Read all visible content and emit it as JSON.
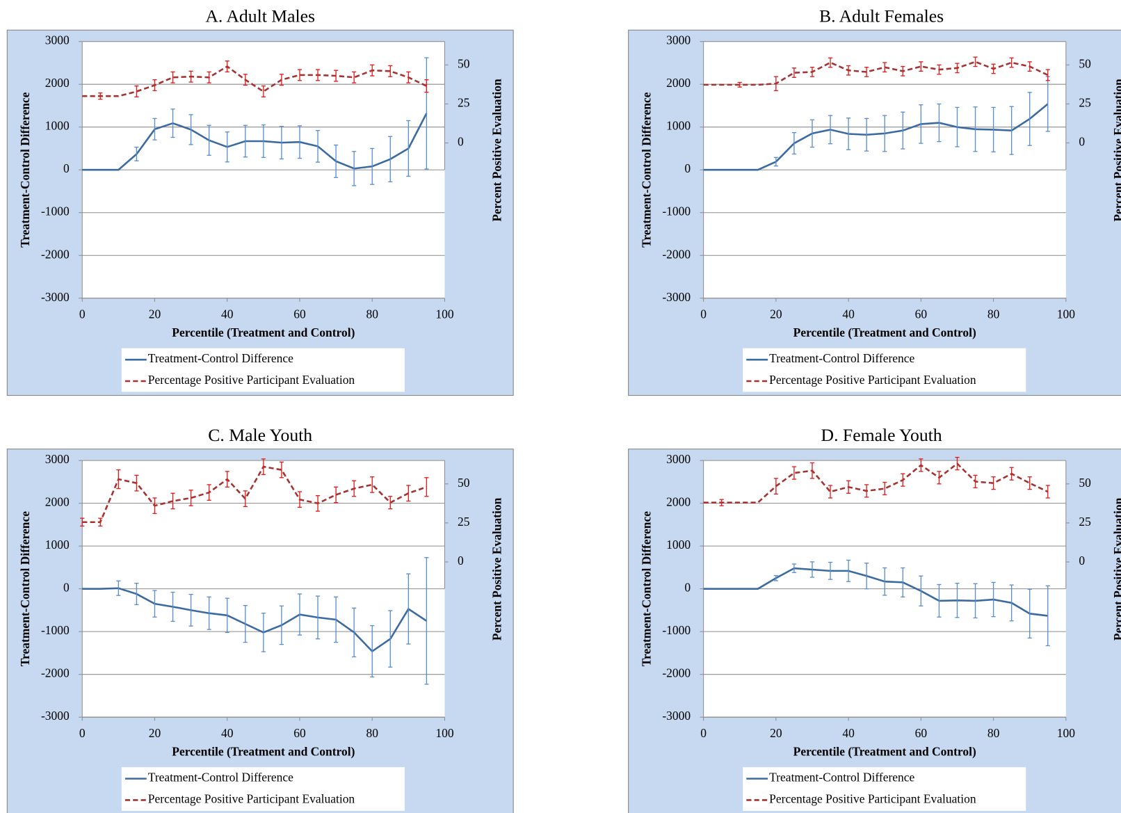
{
  "chart_data": [
    {
      "type": "line",
      "title": "A. Adult Males",
      "x": [
        0,
        5,
        10,
        15,
        20,
        25,
        30,
        35,
        40,
        45,
        50,
        55,
        60,
        65,
        70,
        75,
        80,
        85,
        90,
        95
      ],
      "xlim": [
        0,
        100
      ],
      "xticks": [
        0,
        20,
        40,
        60,
        80,
        100
      ],
      "ylim": [
        -3000,
        3000
      ],
      "yticks": [
        -3000,
        -2000,
        -1000,
        0,
        1000,
        2000,
        3000
      ],
      "y2lim": [
        -17,
        65
      ],
      "y2ticks": [
        0,
        25,
        50
      ],
      "xlabel": "Percentile (Treatment and Control)",
      "ylabel": "Treatment-Control Difference",
      "y2label": "Percent Positive Evaluation",
      "grid": true,
      "legend": "bottom",
      "series": [
        {
          "name": "Treatment-Control Difference",
          "color": "#3b6aa0",
          "error_color": "#5a8fcc",
          "dashed": false,
          "axis": "y",
          "values": [
            0,
            0,
            0,
            370,
            950,
            1090,
            940,
            690,
            535,
            670,
            670,
            635,
            650,
            550,
            200,
            30,
            80,
            250,
            500,
            1320
          ],
          "errors": [
            null,
            null,
            null,
            160,
            250,
            330,
            350,
            350,
            350,
            370,
            380,
            380,
            380,
            370,
            380,
            400,
            420,
            530,
            650,
            1300
          ]
        },
        {
          "name": "Percentage Positive Participant Evaluation",
          "color": "#a33232",
          "error_color": "#e01c1c",
          "dashed": true,
          "axis": "y2",
          "values": [
            30,
            30,
            30,
            33,
            37,
            42,
            42.5,
            42,
            49,
            40.5,
            33,
            40.5,
            43.5,
            43.5,
            43,
            42,
            46.5,
            46,
            42,
            36.5
          ],
          "errors": [
            null,
            2,
            null,
            3.5,
            3.5,
            3.5,
            3.5,
            3.5,
            3.5,
            3.5,
            3.5,
            3.5,
            3.5,
            3.5,
            3.5,
            3.5,
            3.5,
            3.5,
            3.5,
            4
          ]
        }
      ]
    },
    {
      "type": "line",
      "title": "B. Adult Females",
      "x": [
        0,
        5,
        10,
        15,
        20,
        25,
        30,
        35,
        40,
        45,
        50,
        55,
        60,
        65,
        70,
        75,
        80,
        85,
        90,
        95
      ],
      "xlim": [
        0,
        100
      ],
      "xticks": [
        0,
        20,
        40,
        60,
        80,
        100
      ],
      "ylim": [
        -3000,
        3000
      ],
      "yticks": [
        -3000,
        -2000,
        -1000,
        0,
        1000,
        2000,
        3000
      ],
      "y2lim": [
        -17,
        65
      ],
      "y2ticks": [
        0,
        25,
        50
      ],
      "xlabel": "Percentile (Treatment and Control)",
      "ylabel": "Treatment-Control Difference",
      "y2label": "Percent Positive Evaluation",
      "grid": true,
      "legend": "bottom",
      "series": [
        {
          "name": "Treatment-Control Difference",
          "color": "#3b6aa0",
          "error_color": "#5a8fcc",
          "dashed": false,
          "axis": "y",
          "values": [
            0,
            0,
            0,
            0,
            190,
            620,
            850,
            940,
            840,
            820,
            850,
            920,
            1070,
            1100,
            1000,
            950,
            940,
            920,
            1190,
            1540
          ],
          "errors": [
            null,
            null,
            null,
            null,
            100,
            250,
            320,
            330,
            370,
            380,
            420,
            430,
            450,
            440,
            460,
            520,
            520,
            560,
            620,
            640
          ]
        },
        {
          "name": "Percentage Positive Participant Evaluation",
          "color": "#a33232",
          "error_color": "#e01c1c",
          "dashed": true,
          "axis": "y2",
          "values": [
            37.3,
            37.3,
            37.3,
            37.3,
            38,
            45,
            45.5,
            51.5,
            46.5,
            45.5,
            48.5,
            46,
            49,
            47,
            48,
            52,
            47.5,
            51.5,
            49,
            43.5
          ],
          "errors": [
            null,
            null,
            1.5,
            null,
            4.5,
            3,
            3,
            3,
            3,
            3,
            3,
            3,
            3,
            3,
            3,
            3,
            3,
            3,
            3,
            3.5
          ]
        }
      ]
    },
    {
      "type": "line",
      "title": "C. Male Youth",
      "x": [
        0,
        5,
        10,
        15,
        20,
        25,
        30,
        35,
        40,
        45,
        50,
        55,
        60,
        65,
        70,
        75,
        80,
        85,
        90,
        95
      ],
      "xlim": [
        0,
        100
      ],
      "xticks": [
        0,
        20,
        40,
        60,
        80,
        100
      ],
      "ylim": [
        -3000,
        3000
      ],
      "yticks": [
        -3000,
        -2000,
        -1000,
        0,
        1000,
        2000,
        3000
      ],
      "y2lim": [
        -17,
        65
      ],
      "y2ticks": [
        0,
        25,
        50
      ],
      "xlabel": "Percentile (Treatment and Control)",
      "ylabel": "Treatment-Control Difference",
      "y2label": "Percent Positive Evaluation",
      "grid": true,
      "legend": "bottom",
      "series": [
        {
          "name": "Treatment-Control Difference",
          "color": "#3b6aa0",
          "error_color": "#5a8fcc",
          "dashed": false,
          "axis": "y",
          "values": [
            0,
            0,
            15,
            -120,
            -350,
            -420,
            -500,
            -570,
            -620,
            -820,
            -1020,
            -850,
            -600,
            -670,
            -720,
            -1020,
            -1460,
            -1170,
            -470,
            -750
          ],
          "errors": [
            null,
            null,
            170,
            250,
            310,
            340,
            370,
            380,
            400,
            430,
            450,
            450,
            480,
            500,
            530,
            570,
            600,
            660,
            820,
            1480
          ]
        },
        {
          "name": "Percentage Positive Participant Evaluation",
          "color": "#a33232",
          "error_color": "#e01c1c",
          "dashed": true,
          "axis": "y2",
          "values": [
            25.5,
            25.5,
            53,
            50.5,
            36,
            39,
            41,
            44.5,
            53,
            40.5,
            61,
            59,
            40,
            37.5,
            43,
            47,
            49.5,
            38,
            44,
            48
          ],
          "errors": [
            2.5,
            2.5,
            6,
            5,
            5,
            5,
            5,
            5,
            5,
            5,
            5,
            5,
            5,
            5,
            5,
            5,
            5,
            4,
            5,
            6
          ]
        }
      ]
    },
    {
      "type": "line",
      "title": "D. Female Youth",
      "x": [
        0,
        5,
        10,
        15,
        20,
        25,
        30,
        35,
        40,
        45,
        50,
        55,
        60,
        65,
        70,
        75,
        80,
        85,
        90,
        95
      ],
      "xlim": [
        0,
        100
      ],
      "xticks": [
        0,
        20,
        40,
        60,
        80,
        100
      ],
      "ylim": [
        -3000,
        3000
      ],
      "yticks": [
        -3000,
        -2000,
        -1000,
        0,
        1000,
        2000,
        3000
      ],
      "y2lim": [
        -17,
        65
      ],
      "y2ticks": [
        0,
        25,
        50
      ],
      "xlabel": "Percentile (Treatment and Control)",
      "ylabel": "Treatment-Control Difference",
      "y2label": "Percent Positive Evaluation",
      "grid": true,
      "legend": "bottom",
      "series": [
        {
          "name": "Treatment-Control Difference",
          "color": "#3b6aa0",
          "error_color": "#5a8fcc",
          "dashed": false,
          "axis": "y",
          "values": [
            0,
            0,
            0,
            0,
            250,
            480,
            450,
            420,
            420,
            300,
            170,
            150,
            -50,
            -280,
            -270,
            -280,
            -250,
            -330,
            -580,
            -630
          ],
          "errors": [
            null,
            null,
            null,
            null,
            60,
            100,
            180,
            200,
            250,
            300,
            320,
            340,
            350,
            380,
            400,
            400,
            400,
            420,
            570,
            700
          ]
        },
        {
          "name": "Percentage Positive Participant Evaluation",
          "color": "#a33232",
          "error_color": "#e01c1c",
          "dashed": true,
          "axis": "y2",
          "values": [
            38,
            38,
            38,
            38,
            48.5,
            57,
            58.5,
            45,
            48,
            45.5,
            47,
            52.5,
            62,
            54,
            63,
            51.5,
            50.5,
            56.5,
            50.5,
            45
          ],
          "errors": [
            null,
            2,
            null,
            null,
            5,
            4,
            5,
            4,
            4,
            4,
            4,
            4,
            4,
            4,
            4,
            4,
            4,
            4,
            4,
            4
          ]
        }
      ]
    }
  ]
}
